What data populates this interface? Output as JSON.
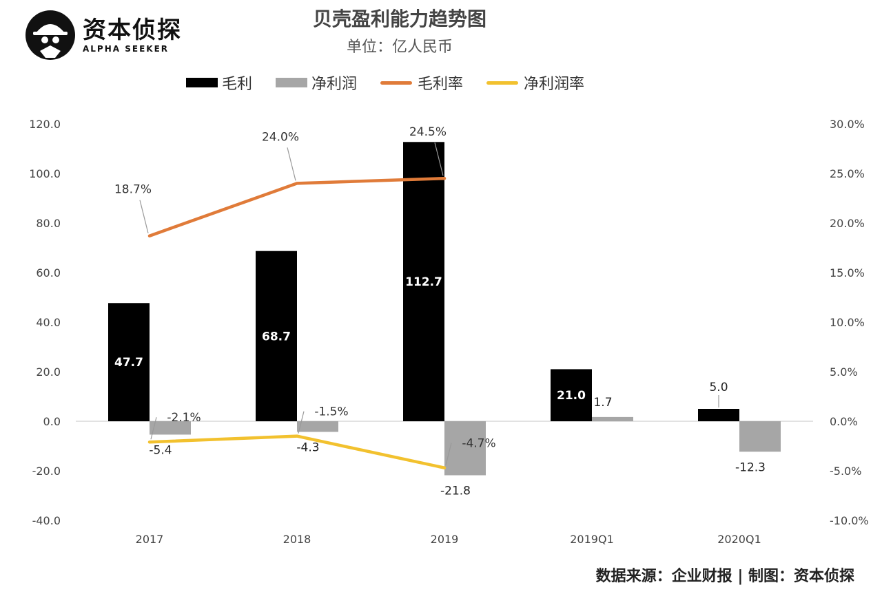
{
  "logo": {
    "name_cn": "资本侦探",
    "name_en": "ALPHA SEEKER"
  },
  "header": {
    "title": "贝壳盈利能力趋势图",
    "subtitle": "单位：亿人民币"
  },
  "legend": [
    {
      "label": "毛利",
      "color": "#000000",
      "kind": "bar"
    },
    {
      "label": "净利润",
      "color": "#a6a6a6",
      "kind": "bar"
    },
    {
      "label": "毛利率",
      "color": "#e07b39",
      "kind": "line"
    },
    {
      "label": "净利润率",
      "color": "#f2c12e",
      "kind": "line"
    }
  ],
  "footer": "数据来源：企业财报 | 制图：资本侦探",
  "chart_data": {
    "type": "bar",
    "categories": [
      "2017",
      "2018",
      "2019",
      "2019Q1",
      "2020Q1"
    ],
    "series": [
      {
        "name": "毛利",
        "type": "bar",
        "axis": "left",
        "color": "#000000",
        "values": [
          47.7,
          68.7,
          112.7,
          21.0,
          5.0
        ],
        "labels": [
          "47.7",
          "68.7",
          "112.7",
          "21.0",
          "5.0"
        ]
      },
      {
        "name": "净利润",
        "type": "bar",
        "axis": "left",
        "color": "#a6a6a6",
        "values": [
          -5.4,
          -4.3,
          -21.8,
          1.7,
          -12.3
        ],
        "labels": [
          "-5.4",
          "-4.3",
          "-21.8",
          "1.7",
          "-12.3"
        ]
      },
      {
        "name": "毛利率",
        "type": "line",
        "axis": "right",
        "color": "#e07b39",
        "values": [
          18.7,
          24.0,
          24.5,
          null,
          null
        ],
        "labels": [
          "18.7%",
          "24.0%",
          "24.5%",
          "",
          ""
        ]
      },
      {
        "name": "净利润率",
        "type": "line",
        "axis": "right",
        "color": "#f2c12e",
        "values": [
          -2.1,
          -1.5,
          -4.7,
          null,
          null
        ],
        "labels": [
          "-2.1%",
          "-1.5%",
          "-4.7%",
          "",
          ""
        ]
      }
    ],
    "y_left": {
      "min": -40,
      "max": 120,
      "step": 20,
      "tick_labels": [
        "-40.0",
        "-20.0",
        "0.0",
        "20.0",
        "40.0",
        "60.0",
        "80.0",
        "100.0",
        "120.0"
      ]
    },
    "y_right": {
      "min": -10,
      "max": 30,
      "step": 5,
      "tick_labels": [
        "-10.0%",
        "-5.0%",
        "0.0%",
        "5.0%",
        "10.0%",
        "15.0%",
        "20.0%",
        "25.0%",
        "30.0%"
      ]
    },
    "grid": false,
    "legend_position": "top"
  }
}
